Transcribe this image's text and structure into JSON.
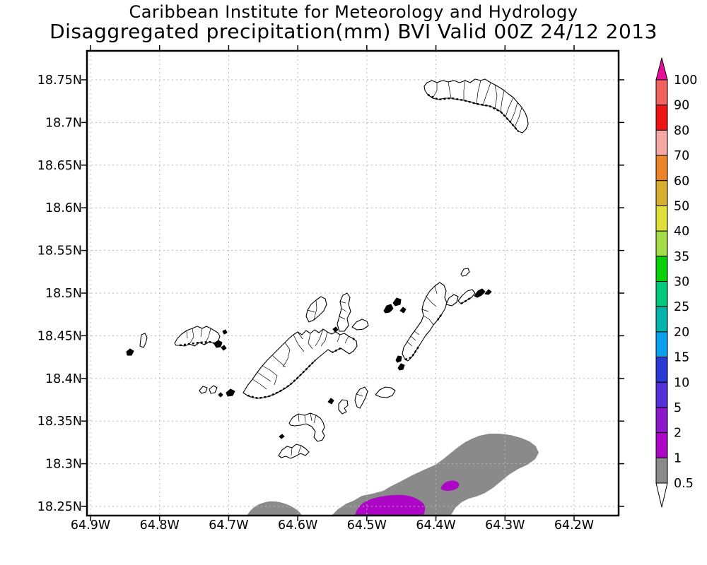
{
  "header": {
    "line1": "Caribbean Institute for Meteorology and Hydrology",
    "line2": "Disaggregated precipitation(mm) BVI Valid 00Z 24/12 2013"
  },
  "axes": {
    "lat_labels": [
      "18.75N",
      "18.7N",
      "18.65N",
      "18.6N",
      "18.55N",
      "18.5N",
      "18.45N",
      "18.4N",
      "18.35N",
      "18.3N",
      "18.25N"
    ],
    "lon_labels": [
      "64.9W",
      "64.8W",
      "64.7W",
      "64.6W",
      "64.5W",
      "64.4W",
      "64.3W",
      "64.2W"
    ]
  },
  "colorbar": {
    "labels_top_to_bottom": [
      "100",
      "90",
      "80",
      "70",
      "60",
      "50",
      "40",
      "35",
      "30",
      "25",
      "20",
      "15",
      "10",
      "5",
      "2",
      "1",
      "0.5"
    ],
    "segment_colors_top_to_bottom": [
      "#f2635f",
      "#ef1414",
      "#f4a9a4",
      "#ee8428",
      "#d8ae30",
      "#e0e03c",
      "#a4dc48",
      "#0ad00a",
      "#00c87d",
      "#00b4aa",
      "#0aa0ee",
      "#2a3ad6",
      "#5530d8",
      "#8d17cd",
      "#ad06c6",
      "#8a8a8a"
    ],
    "arrow_top_color": "#ea0f9b",
    "arrow_bottom_color": "#ffffff"
  },
  "map_colors": {
    "precip_0_5_to_1": "#8a8a8a",
    "precip_1_to_2": "#ad06c6",
    "land_outline": "#000000",
    "grid": "#b8b8b8"
  },
  "chart_data": {
    "type": "map-contour-shaded",
    "title": "Disaggregated precipitation(mm) BVI Valid 00Z 24/12 2013",
    "institution": "Caribbean Institute for Meteorology and Hydrology",
    "valid_time": "00Z 24/12 2013",
    "units": "mm",
    "region": "British Virgin Islands",
    "lat_ticks": [
      "18.25N",
      "18.3N",
      "18.35N",
      "18.4N",
      "18.45N",
      "18.5N",
      "18.55N",
      "18.6N",
      "18.65N",
      "18.7N",
      "18.75N"
    ],
    "lon_ticks": [
      "64.9W",
      "64.8W",
      "64.7W",
      "64.6W",
      "64.5W",
      "64.4W",
      "64.3W",
      "64.2W"
    ],
    "shading_levels_mm": [
      0.5,
      1,
      2,
      5,
      10,
      15,
      20,
      25,
      30,
      35,
      40,
      50,
      60,
      70,
      80,
      90,
      100
    ],
    "shaded_regions": [
      {
        "range_mm": "0.5-1",
        "color": "#8a8a8a",
        "location": "elongated SW-NE band along bottom of map from about 64.56W 18.24N to 64.24W 18.34N"
      },
      {
        "range_mm": "0.5-1",
        "color": "#8a8a8a",
        "location": "small dome at bottom edge near 64.66W 18.24N"
      },
      {
        "range_mm": "1-2",
        "color": "#ad06c6",
        "location": "patch at bottom edge near 64.47W 18.25N"
      },
      {
        "range_mm": "1-2",
        "color": "#ad06c6",
        "location": "small spot near 64.38W 18.285N"
      }
    ],
    "max_shaded_value_mm": "1-2",
    "grid": "dotted lat-lon graticule every 0.05 deg lat / 0.1 deg lon"
  }
}
